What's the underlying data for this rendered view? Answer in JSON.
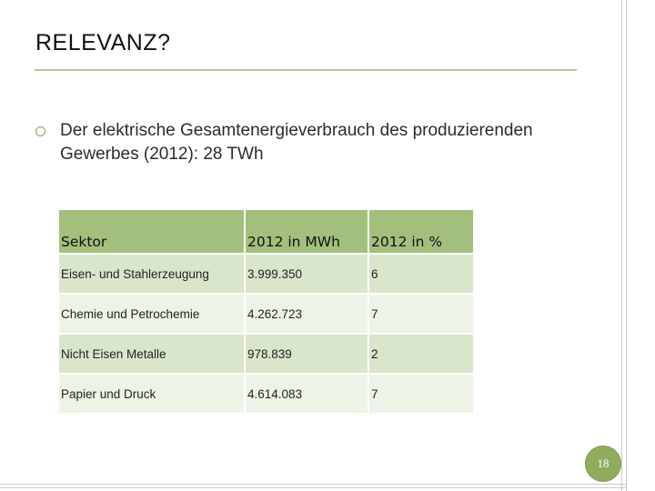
{
  "slide": {
    "title": "RELEVANZ?",
    "bullet": "Der elektrische Gesamtenergieverbrauch des produzierenden Gewerbes (2012): 28 TWh",
    "page_number": "18"
  },
  "table": {
    "headers": [
      "Sektor",
      "2012 in MWh",
      "2012 in %"
    ],
    "rows": [
      [
        "Eisen- und Stahlerzeugung",
        "3.999.350",
        "6"
      ],
      [
        "Chemie und  Petrochemie",
        "4.262.723",
        "7"
      ],
      [
        "Nicht Eisen Metalle",
        "978.839",
        "2"
      ],
      [
        "Papier und Druck",
        "4.614.083",
        "7"
      ]
    ]
  },
  "colors": {
    "header_fill": "#a3bf7d",
    "row_fill_a": "#d9e6cc",
    "row_fill_b": "#eef3e8",
    "accent": "#8fae5d"
  }
}
